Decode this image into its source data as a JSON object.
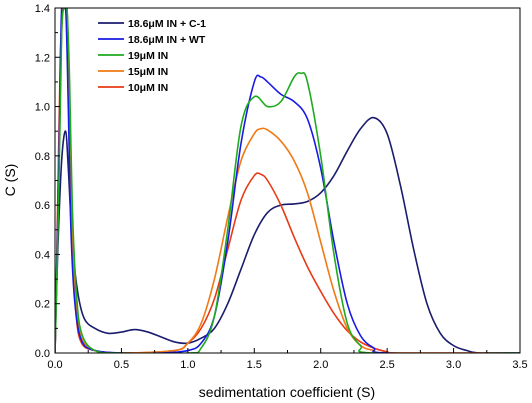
{
  "chart_data": {
    "type": "line",
    "xlabel": "sedimentation coefficient (S)",
    "ylabel": "C (S)",
    "xlim": [
      0.0,
      3.5
    ],
    "ylim": [
      0.0,
      1.4
    ],
    "x_ticks": [
      "0.0",
      "0.5",
      "1.0",
      "1.5",
      "2.0",
      "2.5",
      "3.0",
      "3.5"
    ],
    "y_ticks": [
      "0.0",
      "0.2",
      "0.4",
      "0.6",
      "0.8",
      "1.0",
      "1.2",
      "1.4"
    ],
    "grid": false,
    "legend_position": "top-left",
    "series": [
      {
        "name": "18.6μM IN + C-1",
        "color": "#1c1c6e",
        "points": [
          [
            0.0,
            0.0
          ],
          [
            0.02,
            0.4
          ],
          [
            0.05,
            0.78
          ],
          [
            0.08,
            0.9
          ],
          [
            0.1,
            0.75
          ],
          [
            0.13,
            0.45
          ],
          [
            0.17,
            0.25
          ],
          [
            0.22,
            0.14
          ],
          [
            0.3,
            0.1
          ],
          [
            0.4,
            0.08
          ],
          [
            0.5,
            0.085
          ],
          [
            0.6,
            0.095
          ],
          [
            0.7,
            0.085
          ],
          [
            0.8,
            0.065
          ],
          [
            0.9,
            0.045
          ],
          [
            1.0,
            0.04
          ],
          [
            1.1,
            0.06
          ],
          [
            1.2,
            0.1
          ],
          [
            1.3,
            0.2
          ],
          [
            1.4,
            0.34
          ],
          [
            1.5,
            0.48
          ],
          [
            1.6,
            0.57
          ],
          [
            1.7,
            0.6
          ],
          [
            1.8,
            0.605
          ],
          [
            1.9,
            0.615
          ],
          [
            2.0,
            0.65
          ],
          [
            2.1,
            0.72
          ],
          [
            2.2,
            0.82
          ],
          [
            2.3,
            0.91
          ],
          [
            2.4,
            0.955
          ],
          [
            2.5,
            0.89
          ],
          [
            2.6,
            0.68
          ],
          [
            2.7,
            0.42
          ],
          [
            2.8,
            0.2
          ],
          [
            2.9,
            0.08
          ],
          [
            3.0,
            0.03
          ],
          [
            3.1,
            0.01
          ],
          [
            3.2,
            0.0
          ],
          [
            3.5,
            0.0
          ]
        ]
      },
      {
        "name": "18.6μM IN + WT",
        "color": "#1a1ae6",
        "points": [
          [
            0.0,
            0.0
          ],
          [
            0.03,
            0.8
          ],
          [
            0.05,
            1.4
          ],
          [
            0.08,
            1.4
          ],
          [
            0.1,
            1.0
          ],
          [
            0.12,
            0.5
          ],
          [
            0.15,
            0.2
          ],
          [
            0.2,
            0.05
          ],
          [
            0.3,
            0.01
          ],
          [
            0.5,
            0.0
          ],
          [
            0.8,
            0.0
          ],
          [
            1.0,
            0.01
          ],
          [
            1.1,
            0.04
          ],
          [
            1.2,
            0.15
          ],
          [
            1.3,
            0.45
          ],
          [
            1.4,
            0.85
          ],
          [
            1.5,
            1.1
          ],
          [
            1.55,
            1.12
          ],
          [
            1.6,
            1.1
          ],
          [
            1.7,
            1.05
          ],
          [
            1.8,
            1.02
          ],
          [
            1.9,
            0.95
          ],
          [
            2.0,
            0.75
          ],
          [
            2.1,
            0.45
          ],
          [
            2.2,
            0.2
          ],
          [
            2.3,
            0.07
          ],
          [
            2.4,
            0.02
          ],
          [
            2.5,
            0.0
          ],
          [
            3.5,
            0.0
          ]
        ]
      },
      {
        "name": "19μM IN",
        "color": "#1faa1f",
        "points": [
          [
            0.0,
            0.0
          ],
          [
            0.03,
            0.7
          ],
          [
            0.05,
            1.3
          ],
          [
            0.07,
            1.4
          ],
          [
            0.09,
            1.4
          ],
          [
            0.11,
            1.1
          ],
          [
            0.13,
            0.6
          ],
          [
            0.16,
            0.25
          ],
          [
            0.2,
            0.08
          ],
          [
            0.3,
            0.01
          ],
          [
            0.5,
            0.0
          ],
          [
            1.0,
            0.0
          ],
          [
            1.1,
            0.02
          ],
          [
            1.2,
            0.15
          ],
          [
            1.3,
            0.5
          ],
          [
            1.4,
            0.92
          ],
          [
            1.5,
            1.04
          ],
          [
            1.6,
            1.0
          ],
          [
            1.7,
            1.02
          ],
          [
            1.8,
            1.12
          ],
          [
            1.85,
            1.135
          ],
          [
            1.9,
            1.1
          ],
          [
            2.0,
            0.8
          ],
          [
            2.1,
            0.4
          ],
          [
            2.2,
            0.12
          ],
          [
            2.3,
            0.03
          ],
          [
            2.4,
            0.0
          ],
          [
            3.5,
            0.0
          ]
        ]
      },
      {
        "name": "15μM IN",
        "color": "#f07a14",
        "points": [
          [
            0.0,
            0.0
          ],
          [
            0.02,
            0.5
          ],
          [
            0.04,
            1.1
          ],
          [
            0.06,
            1.4
          ],
          [
            0.09,
            1.4
          ],
          [
            0.11,
            1.0
          ],
          [
            0.13,
            0.5
          ],
          [
            0.16,
            0.2
          ],
          [
            0.2,
            0.06
          ],
          [
            0.3,
            0.01
          ],
          [
            0.5,
            0.0
          ],
          [
            0.9,
            0.01
          ],
          [
            1.0,
            0.04
          ],
          [
            1.1,
            0.12
          ],
          [
            1.2,
            0.3
          ],
          [
            1.3,
            0.55
          ],
          [
            1.4,
            0.78
          ],
          [
            1.5,
            0.89
          ],
          [
            1.55,
            0.91
          ],
          [
            1.6,
            0.905
          ],
          [
            1.7,
            0.86
          ],
          [
            1.8,
            0.78
          ],
          [
            1.9,
            0.65
          ],
          [
            2.0,
            0.45
          ],
          [
            2.1,
            0.25
          ],
          [
            2.2,
            0.1
          ],
          [
            2.3,
            0.03
          ],
          [
            2.4,
            0.01
          ],
          [
            2.5,
            0.0
          ],
          [
            3.5,
            0.0
          ]
        ]
      },
      {
        "name": "10μM IN",
        "color": "#e83a14",
        "points": [
          [
            0.0,
            0.0
          ],
          [
            0.02,
            0.6
          ],
          [
            0.04,
            1.2
          ],
          [
            0.06,
            1.4
          ],
          [
            0.09,
            1.4
          ],
          [
            0.11,
            0.9
          ],
          [
            0.13,
            0.45
          ],
          [
            0.16,
            0.15
          ],
          [
            0.2,
            0.04
          ],
          [
            0.3,
            0.01
          ],
          [
            0.5,
            0.0
          ],
          [
            0.9,
            0.01
          ],
          [
            1.0,
            0.04
          ],
          [
            1.1,
            0.1
          ],
          [
            1.2,
            0.22
          ],
          [
            1.3,
            0.42
          ],
          [
            1.4,
            0.62
          ],
          [
            1.5,
            0.72
          ],
          [
            1.55,
            0.725
          ],
          [
            1.6,
            0.7
          ],
          [
            1.7,
            0.6
          ],
          [
            1.8,
            0.47
          ],
          [
            1.9,
            0.35
          ],
          [
            2.0,
            0.25
          ],
          [
            2.1,
            0.16
          ],
          [
            2.2,
            0.09
          ],
          [
            2.3,
            0.045
          ],
          [
            2.4,
            0.02
          ],
          [
            2.5,
            0.005
          ],
          [
            2.6,
            0.0
          ],
          [
            3.5,
            0.0
          ]
        ]
      }
    ]
  }
}
